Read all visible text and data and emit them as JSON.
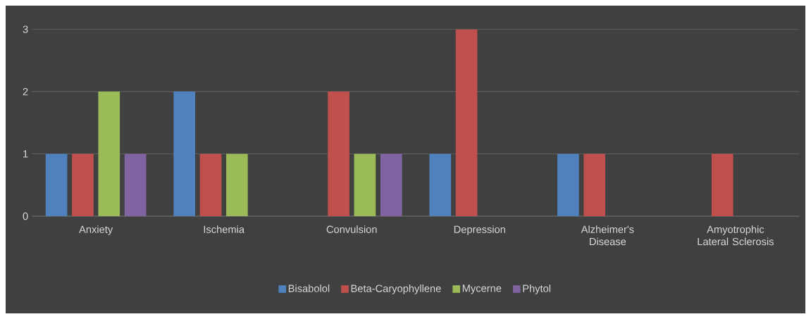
{
  "chart_data": {
    "type": "bar",
    "categories": [
      "Anxiety",
      "Ischemia",
      "Convulsion",
      "Depression",
      "Alzheimer's Disease",
      "Amyotrophic Lateral Sclerosis"
    ],
    "series": [
      {
        "name": "Bisabolol",
        "color": "#4f81bd",
        "values": [
          1,
          2,
          null,
          1,
          1,
          null
        ]
      },
      {
        "name": "Beta-Caryophyllene",
        "color": "#c0504d",
        "values": [
          1,
          1,
          2,
          3,
          1,
          1
        ]
      },
      {
        "name": "Mycerne",
        "color": "#9bbb59",
        "values": [
          2,
          1,
          1,
          null,
          null,
          null
        ]
      },
      {
        "name": "Phytol",
        "color": "#8064a2",
        "values": [
          1,
          null,
          1,
          null,
          null,
          null
        ]
      }
    ],
    "ylim": [
      0,
      3
    ],
    "yticks": [
      0,
      1,
      2,
      3
    ],
    "grid": "y",
    "legend": "bottom"
  }
}
